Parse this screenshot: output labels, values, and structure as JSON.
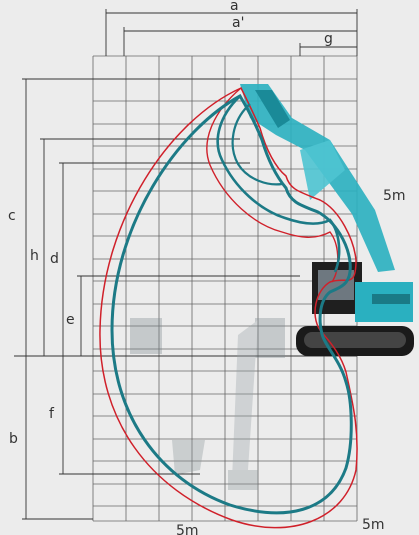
{
  "diagram": {
    "dimension_labels": {
      "a": "a",
      "a_prime": "a'",
      "g": "g",
      "c": "c",
      "h": "h",
      "d": "d",
      "e": "e",
      "b": "b",
      "f": "f"
    },
    "scale_labels": {
      "right_upper": "5m",
      "right_lower": "5m",
      "bottom": "5m"
    },
    "colors": {
      "background": "#ececec",
      "grid": "#555555",
      "working_range_standard": "#1c7a86",
      "working_range_long": "#d0202a",
      "excavator_accent": "#2ab0c0",
      "excavator_body": "#2a2a2a"
    }
  }
}
